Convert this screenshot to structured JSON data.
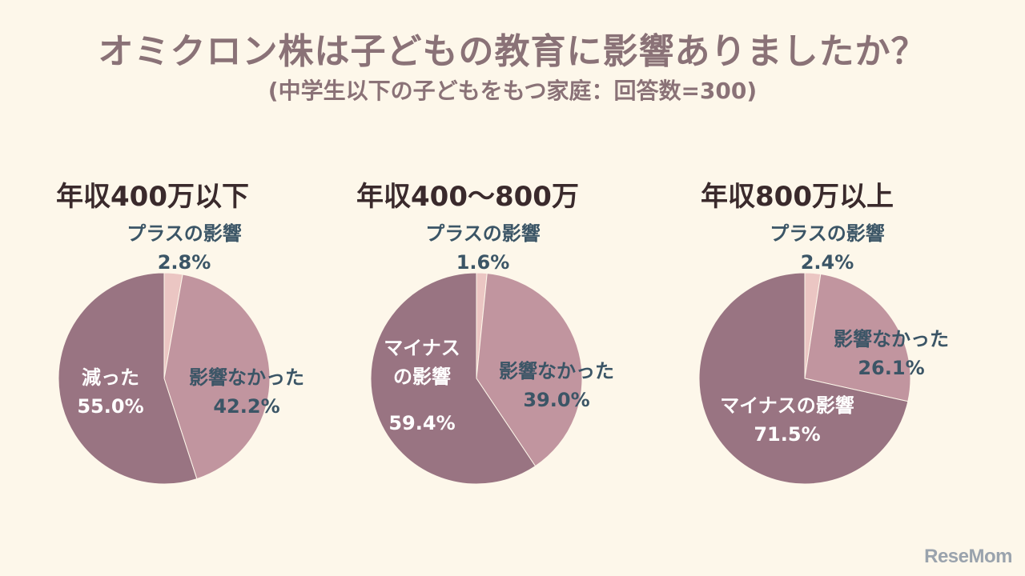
{
  "title": "オミクロン株は子どもの教育に影響ありましたか？",
  "subtitle": "(中学生以下の子どもをもつ家庭：回答数=300)",
  "logo": "ReseMom",
  "colors": {
    "plus": "#ebc6c3",
    "none": "#c1959f",
    "minus": "#997482",
    "label_dark": "#3b5566",
    "label_light": "#ffffff"
  },
  "chart_data": [
    {
      "type": "pie",
      "title": "年収400万以下",
      "slices": [
        {
          "key": "plus",
          "label": "プラスの影響",
          "value": 2.8,
          "value_label": "2.8%"
        },
        {
          "key": "none",
          "label": "影響なかった",
          "value": 42.2,
          "value_label": "42.2%"
        },
        {
          "key": "minus",
          "label": "減った",
          "value": 55.0,
          "value_label": "55.0%"
        }
      ]
    },
    {
      "type": "pie",
      "title": "年収400〜800万",
      "slices": [
        {
          "key": "plus",
          "label": "プラスの影響",
          "value": 1.6,
          "value_label": "1.6%"
        },
        {
          "key": "none",
          "label": "影響なかった",
          "value": 39.0,
          "value_label": "39.0%"
        },
        {
          "key": "minus",
          "label": "マイナスの影響",
          "value": 59.4,
          "value_label": "59.4%"
        }
      ]
    },
    {
      "type": "pie",
      "title": "年収800万以上",
      "slices": [
        {
          "key": "plus",
          "label": "プラスの影響",
          "value": 2.4,
          "value_label": "2.4%"
        },
        {
          "key": "none",
          "label": "影響なかった",
          "value": 26.1,
          "value_label": "26.1%"
        },
        {
          "key": "minus",
          "label": "マイナスの影響",
          "value": 71.5,
          "value_label": "71.5%"
        }
      ]
    }
  ]
}
